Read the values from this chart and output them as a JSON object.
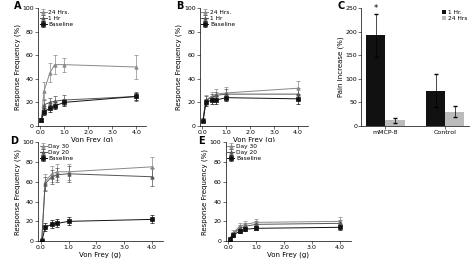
{
  "von_frey_x": [
    0.04,
    0.16,
    0.4,
    0.6,
    1.0,
    4.0
  ],
  "panel_A": {
    "label": "A",
    "series": [
      {
        "name": "24 Hrs.",
        "y": [
          5,
          30,
          45,
          52,
          52,
          50
        ],
        "yerr": [
          2,
          7,
          8,
          8,
          6,
          10
        ],
        "color": "#888888",
        "marker": "^",
        "linestyle": "-"
      },
      {
        "name": "1 Hr",
        "y": [
          5,
          18,
          20,
          21,
          22,
          25
        ],
        "yerr": [
          2,
          4,
          4,
          4,
          4,
          4
        ],
        "color": "#555555",
        "marker": "^",
        "linestyle": "-"
      },
      {
        "name": "Baseline",
        "y": [
          5,
          12,
          15,
          17,
          20,
          25
        ],
        "yerr": [
          1,
          3,
          3,
          3,
          3,
          3
        ],
        "color": "#111111",
        "marker": "s",
        "linestyle": "-"
      }
    ],
    "ylabel": "Response Frequency (%)",
    "xlabel": "Von Frey (g)",
    "ylim": [
      0,
      100
    ],
    "xlim": [
      -0.1,
      4.4
    ]
  },
  "panel_B": {
    "label": "B",
    "series": [
      {
        "name": "24 Hrs.",
        "y": [
          5,
          22,
          25,
          27,
          28,
          32
        ],
        "yerr": [
          2,
          4,
          4,
          4,
          5,
          6
        ],
        "color": "#888888",
        "marker": "^",
        "linestyle": "-"
      },
      {
        "name": "1 Hr",
        "y": [
          5,
          22,
          24,
          26,
          27,
          27
        ],
        "yerr": [
          2,
          3,
          3,
          3,
          4,
          5
        ],
        "color": "#555555",
        "marker": "^",
        "linestyle": "-"
      },
      {
        "name": "Baseline",
        "y": [
          4,
          20,
          22,
          22,
          24,
          23
        ],
        "yerr": [
          1,
          3,
          3,
          3,
          3,
          4
        ],
        "color": "#111111",
        "marker": "s",
        "linestyle": "-"
      }
    ],
    "ylabel": "Response Frequency (%)",
    "xlabel": "Von Frey (g)",
    "ylim": [
      0,
      100
    ],
    "xlim": [
      -0.1,
      4.4
    ]
  },
  "panel_C": {
    "label": "C",
    "groups": [
      "mMCP-8",
      "Control"
    ],
    "series": [
      {
        "name": "1 Hr.",
        "values": [
          192,
          75
        ],
        "yerr": [
          45,
          35
        ],
        "color": "#111111"
      },
      {
        "name": "24 Hrs",
        "values": [
          12,
          30
        ],
        "yerr": [
          5,
          12
        ],
        "color": "#bbbbbb"
      }
    ],
    "ylabel": "Pain Increase (%)",
    "ylim": [
      0,
      250
    ],
    "yticks": [
      0,
      50,
      100,
      150,
      200,
      250
    ]
  },
  "panel_D": {
    "label": "D",
    "series": [
      {
        "name": "Day 30",
        "y": [
          2,
          60,
          68,
          70,
          70,
          75
        ],
        "yerr": [
          1,
          8,
          8,
          8,
          8,
          10
        ],
        "color": "#888888",
        "marker": "^",
        "linestyle": "-"
      },
      {
        "name": "Day 20",
        "y": [
          2,
          58,
          65,
          67,
          68,
          65
        ],
        "yerr": [
          1,
          7,
          7,
          7,
          8,
          9
        ],
        "color": "#555555",
        "marker": "^",
        "linestyle": "-"
      },
      {
        "name": "Baseline",
        "y": [
          0,
          14,
          17,
          18,
          20,
          22
        ],
        "yerr": [
          0,
          4,
          4,
          4,
          4,
          4
        ],
        "color": "#111111",
        "marker": "s",
        "linestyle": "-"
      }
    ],
    "ylabel": "Response Frequency (%)",
    "xlabel": "Von Frey (g)",
    "ylim": [
      0,
      100
    ],
    "xlim": [
      -0.1,
      4.4
    ]
  },
  "panel_E": {
    "label": "E",
    "series": [
      {
        "name": "Day 30",
        "y": [
          2,
          8,
          15,
          17,
          19,
          20
        ],
        "yerr": [
          1,
          3,
          3,
          3,
          3,
          4
        ],
        "color": "#888888",
        "marker": "^",
        "linestyle": "-"
      },
      {
        "name": "Day 20",
        "y": [
          2,
          7,
          13,
          15,
          17,
          18
        ],
        "yerr": [
          1,
          2,
          3,
          3,
          3,
          3
        ],
        "color": "#555555",
        "marker": "^",
        "linestyle": "-"
      },
      {
        "name": "Baseline",
        "y": [
          2,
          6,
          10,
          12,
          13,
          14
        ],
        "yerr": [
          1,
          2,
          2,
          2,
          2,
          3
        ],
        "color": "#111111",
        "marker": "s",
        "linestyle": "-"
      }
    ],
    "ylabel": "Response Frequency (%)",
    "xlabel": "Von Frey (g)",
    "ylim": [
      0,
      100
    ],
    "xlim": [
      -0.1,
      4.4
    ]
  },
  "xticks": [
    0.0,
    1.0,
    2.0,
    3.0,
    4.0
  ],
  "xtick_labels": [
    "0.0",
    "1.0",
    "2.0",
    "3.0",
    "4.0"
  ],
  "yticks": [
    0,
    20,
    40,
    60,
    80,
    100
  ],
  "fontsize_label": 5.0,
  "fontsize_tick": 4.5,
  "fontsize_legend": 4.2,
  "fontsize_panel": 7,
  "markersize": 2.5,
  "linewidth": 0.7,
  "capsize": 1.2,
  "elinewidth": 0.5
}
